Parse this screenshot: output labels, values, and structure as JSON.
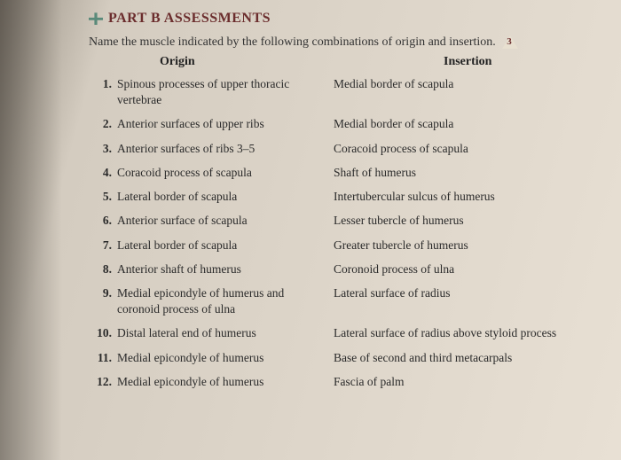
{
  "header": "PART B ASSESSMENTS",
  "instruction": "Name the muscle indicated by the following combinations of origin and insertion.",
  "triangle_num": "3",
  "col_origin": "Origin",
  "col_insertion": "Insertion",
  "rows": [
    {
      "n": "1.",
      "o": "Spinous processes of upper thoracic vertebrae",
      "i": "Medial border of scapula"
    },
    {
      "n": "2.",
      "o": "Anterior surfaces of upper ribs",
      "i": "Medial border of scapula"
    },
    {
      "n": "3.",
      "o": "Anterior surfaces of ribs 3–5",
      "i": "Coracoid process of scapula"
    },
    {
      "n": "4.",
      "o": "Coracoid process of scapula",
      "i": "Shaft of humerus"
    },
    {
      "n": "5.",
      "o": "Lateral border of scapula",
      "i": "Intertubercular sulcus of humerus"
    },
    {
      "n": "6.",
      "o": "Anterior surface of scapula",
      "i": "Lesser tubercle of humerus"
    },
    {
      "n": "7.",
      "o": "Lateral border of scapula",
      "i": "Greater tubercle of humerus"
    },
    {
      "n": "8.",
      "o": "Anterior shaft of humerus",
      "i": "Coronoid process of ulna"
    },
    {
      "n": "9.",
      "o": "Medial epicondyle of humerus and coronoid process of ulna",
      "i": "Lateral surface of radius"
    },
    {
      "n": "10.",
      "o": "Distal lateral end of humerus",
      "i": "Lateral surface of radius above styloid process"
    },
    {
      "n": "11.",
      "o": "Medial epicondyle of humerus",
      "i": "Base of second and third metacarpals"
    },
    {
      "n": "12.",
      "o": "Medial epicondyle of humerus",
      "i": "Fascia of palm"
    }
  ]
}
